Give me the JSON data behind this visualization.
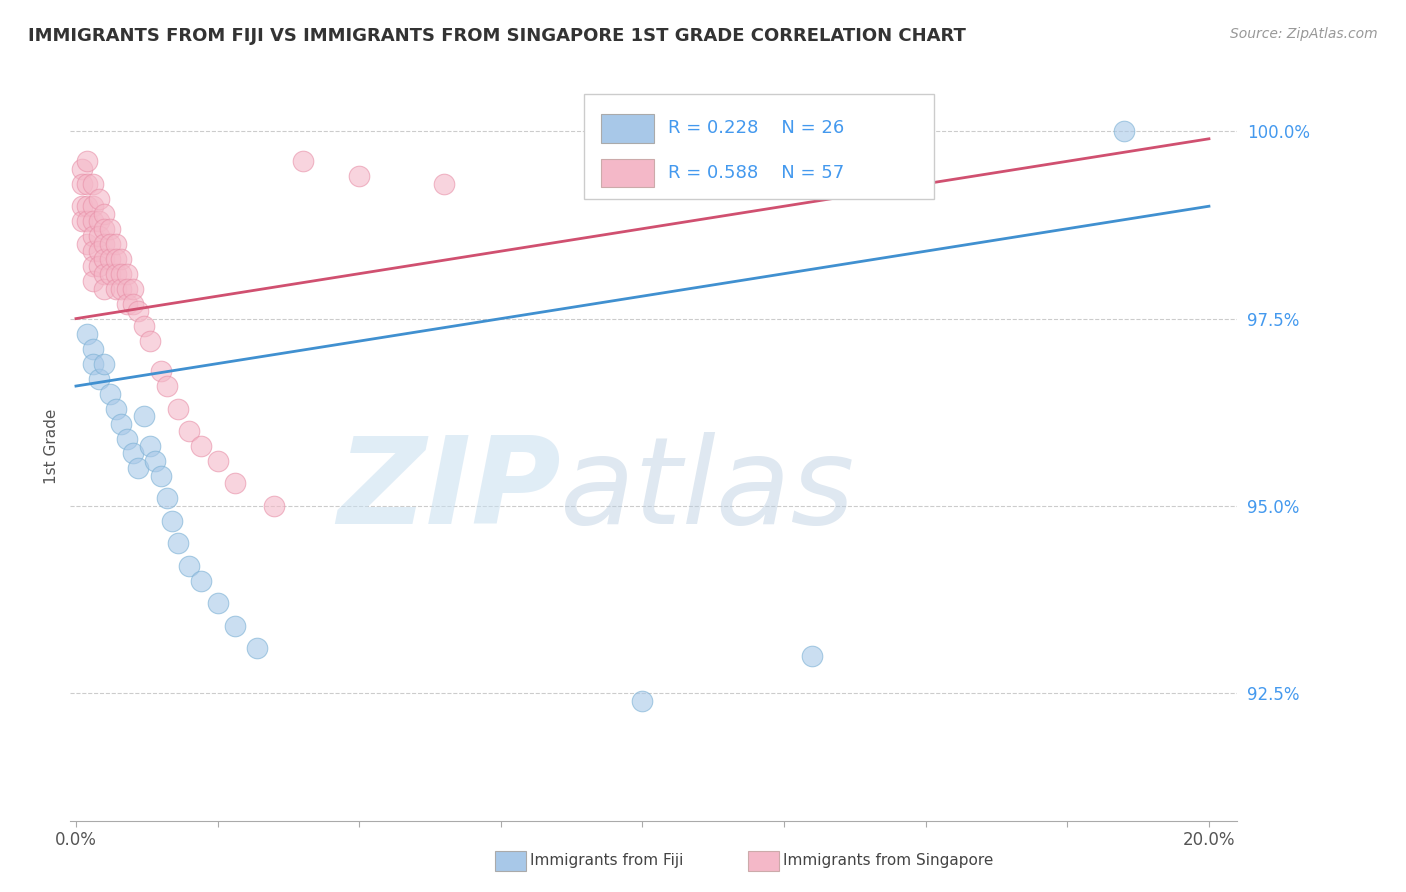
{
  "title": "IMMIGRANTS FROM FIJI VS IMMIGRANTS FROM SINGAPORE 1ST GRADE CORRELATION CHART",
  "source_text": "Source: ZipAtlas.com",
  "ylabel": "1st Grade",
  "xlim": [
    -0.001,
    0.205
  ],
  "ylim": [
    0.908,
    1.008
  ],
  "xtick_positions": [
    0.0,
    0.025,
    0.05,
    0.075,
    0.1,
    0.125,
    0.15,
    0.175,
    0.2
  ],
  "xtick_labels_show": {
    "0.0": "0.0%",
    "0.20": "20.0%"
  },
  "yticks": [
    0.925,
    0.95,
    0.975,
    1.0
  ],
  "yticklabels": [
    "92.5%",
    "95.0%",
    "97.5%",
    "100.0%"
  ],
  "blue_color": "#a8c8e8",
  "blue_edge_color": "#7ab0d4",
  "pink_color": "#f4b8c8",
  "pink_edge_color": "#e890a8",
  "blue_line_color": "#4090d0",
  "pink_line_color": "#d05070",
  "legend_text_color": "#4499ee",
  "legend_R_blue": "R = 0.228",
  "legend_N_blue": "N = 26",
  "legend_R_pink": "R = 0.588",
  "legend_N_pink": "N = 57",
  "watermark_zip": "ZIP",
  "watermark_atlas": "atlas",
  "grid_color": "#cccccc",
  "background_color": "#ffffff",
  "blue_line_x0": 0.0,
  "blue_line_y0": 0.966,
  "blue_line_x1": 0.2,
  "blue_line_y1": 0.99,
  "pink_line_x0": 0.0,
  "pink_line_y0": 0.975,
  "pink_line_x1": 0.2,
  "pink_line_y1": 0.999,
  "blue_scatter_x": [
    0.002,
    0.003,
    0.003,
    0.004,
    0.005,
    0.006,
    0.007,
    0.008,
    0.009,
    0.01,
    0.011,
    0.012,
    0.013,
    0.014,
    0.015,
    0.016,
    0.017,
    0.018,
    0.02,
    0.022,
    0.025,
    0.028,
    0.032,
    0.1,
    0.13,
    0.185
  ],
  "blue_scatter_y": [
    0.973,
    0.971,
    0.969,
    0.967,
    0.969,
    0.965,
    0.963,
    0.961,
    0.959,
    0.957,
    0.955,
    0.962,
    0.958,
    0.956,
    0.954,
    0.951,
    0.948,
    0.945,
    0.942,
    0.94,
    0.937,
    0.934,
    0.931,
    0.924,
    0.93,
    1.0
  ],
  "pink_scatter_x": [
    0.001,
    0.001,
    0.001,
    0.001,
    0.002,
    0.002,
    0.002,
    0.002,
    0.002,
    0.003,
    0.003,
    0.003,
    0.003,
    0.003,
    0.003,
    0.003,
    0.004,
    0.004,
    0.004,
    0.004,
    0.004,
    0.005,
    0.005,
    0.005,
    0.005,
    0.005,
    0.005,
    0.006,
    0.006,
    0.006,
    0.006,
    0.007,
    0.007,
    0.007,
    0.007,
    0.008,
    0.008,
    0.008,
    0.009,
    0.009,
    0.009,
    0.01,
    0.01,
    0.011,
    0.012,
    0.013,
    0.015,
    0.016,
    0.018,
    0.02,
    0.022,
    0.025,
    0.028,
    0.035,
    0.04,
    0.05,
    0.065
  ],
  "pink_scatter_y": [
    0.995,
    0.993,
    0.99,
    0.988,
    0.996,
    0.993,
    0.99,
    0.988,
    0.985,
    0.993,
    0.99,
    0.988,
    0.986,
    0.984,
    0.982,
    0.98,
    0.991,
    0.988,
    0.986,
    0.984,
    0.982,
    0.989,
    0.987,
    0.985,
    0.983,
    0.981,
    0.979,
    0.987,
    0.985,
    0.983,
    0.981,
    0.985,
    0.983,
    0.981,
    0.979,
    0.983,
    0.981,
    0.979,
    0.981,
    0.979,
    0.977,
    0.979,
    0.977,
    0.976,
    0.974,
    0.972,
    0.968,
    0.966,
    0.963,
    0.96,
    0.958,
    0.956,
    0.953,
    0.95,
    0.996,
    0.994,
    0.993
  ]
}
